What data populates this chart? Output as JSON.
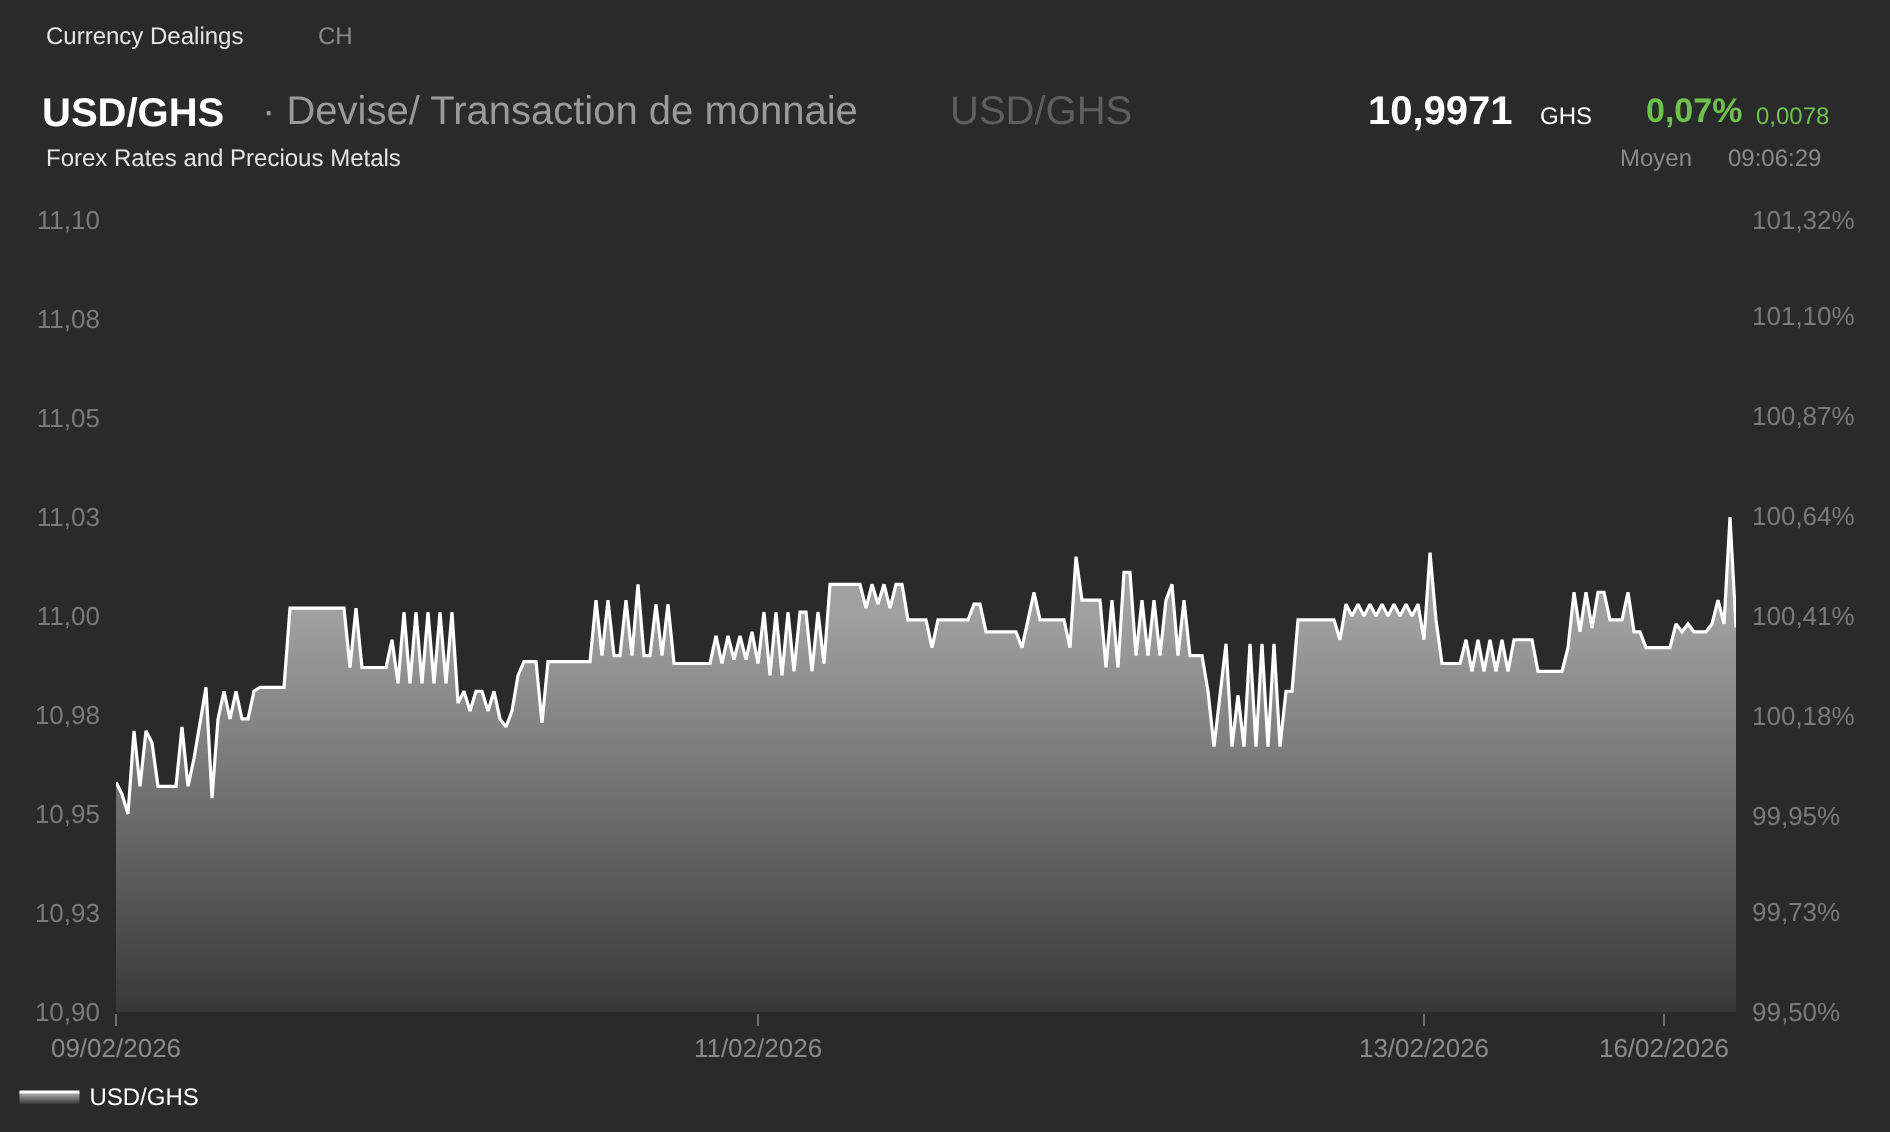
{
  "chart_data": {
    "type": "area",
    "title": "USD/GHS",
    "subtitle": "Forex Rates and Precious Metals",
    "annotations": [
      "Currency Dealings",
      "CH",
      "· Devise/ Transaction de monnaie",
      "USD/GHS",
      "10,9971",
      "GHS",
      "0,07%",
      "0,0078",
      "Moyen",
      "09:06:29"
    ],
    "categories": [
      "09/02/2026",
      null,
      null,
      null,
      null,
      null,
      null,
      null,
      null,
      null,
      null,
      null,
      null,
      null,
      null,
      null,
      null,
      null,
      null,
      null,
      null,
      null,
      null,
      null,
      null,
      null,
      null,
      null,
      null,
      null,
      null,
      null,
      null,
      null,
      null,
      null,
      null,
      null,
      null,
      null,
      null,
      null,
      null,
      null,
      null,
      null,
      null,
      null,
      null,
      null,
      null,
      null,
      null,
      null,
      null,
      null,
      null,
      null,
      null,
      null,
      null,
      null,
      null,
      null,
      null,
      null,
      null,
      null,
      null,
      null,
      null,
      null,
      null,
      null,
      null,
      null,
      null,
      null,
      null,
      null,
      null,
      null,
      null,
      null,
      null,
      null,
      null,
      null,
      null,
      null,
      null,
      null,
      null,
      null,
      null,
      null,
      null,
      null,
      null,
      null,
      null,
      null,
      null,
      null,
      null,
      null,
      null,
      "11/02/2026",
      null,
      null,
      null,
      null,
      null,
      null,
      null,
      null,
      null,
      null,
      null,
      null,
      null,
      null,
      null,
      null,
      null,
      null,
      null,
      null,
      null,
      null,
      null,
      null,
      null,
      null,
      null,
      null,
      null,
      null,
      null,
      null,
      null,
      null,
      null,
      null,
      null,
      null,
      null,
      null,
      null,
      null,
      null,
      null,
      null,
      null,
      null,
      null,
      null,
      null,
      null,
      null,
      null,
      null,
      null,
      null,
      null,
      null,
      null,
      null,
      null,
      null,
      null,
      null,
      null,
      null,
      null,
      null,
      null,
      null,
      null,
      null,
      null,
      null,
      null,
      null,
      null,
      null,
      null,
      null,
      null,
      null,
      null,
      null,
      null,
      null,
      null,
      null,
      null,
      null,
      null,
      null,
      null,
      null,
      null,
      null,
      null,
      null,
      null,
      null,
      null,
      null,
      null,
      null,
      null,
      null,
      null,
      null,
      null,
      null,
      "13/02/2026",
      null,
      null,
      null,
      null,
      null,
      null,
      null,
      null,
      null,
      null,
      null,
      null,
      null,
      null,
      null,
      null,
      null,
      null,
      null,
      null,
      null,
      null,
      null,
      null,
      null,
      null,
      null,
      null,
      null,
      null,
      null,
      null,
      null,
      null,
      null,
      null,
      null,
      null,
      null,
      "16/02/2026",
      null,
      null,
      null,
      null,
      null,
      null,
      null,
      null,
      null,
      null,
      null,
      null
    ],
    "series": [
      {
        "name": "USD/GHS",
        "color": "#ffffff",
        "values": [
          10.958,
          10.955,
          10.95,
          10.971,
          10.957,
          10.971,
          10.968,
          10.957,
          10.957,
          10.957,
          10.957,
          10.972,
          10.957,
          10.964,
          10.973,
          10.982,
          10.954,
          10.974,
          10.981,
          10.974,
          10.981,
          10.974,
          10.974,
          10.981,
          10.982,
          10.982,
          10.982,
          10.982,
          10.982,
          11.002,
          11.002,
          11.002,
          11.002,
          11.002,
          11.002,
          11.002,
          11.002,
          11.002,
          11.002,
          10.987,
          11.002,
          10.987,
          10.987,
          10.987,
          10.987,
          10.987,
          10.994,
          10.983,
          11.001,
          10.983,
          11.001,
          10.983,
          11.001,
          10.983,
          11.001,
          10.983,
          11.001,
          10.978,
          10.981,
          10.976,
          10.981,
          10.981,
          10.976,
          10.981,
          10.974,
          10.972,
          10.976,
          10.985,
          10.9885,
          10.9885,
          10.9885,
          10.973,
          10.9885,
          10.9885,
          10.9885,
          10.9885,
          10.9885,
          10.9885,
          10.9885,
          10.9885,
          11.004,
          10.99,
          11.004,
          10.99,
          10.99,
          11.004,
          10.99,
          11.008,
          10.99,
          10.99,
          11.003,
          10.99,
          11.003,
          10.988,
          10.988,
          10.988,
          10.988,
          10.988,
          10.988,
          10.988,
          10.995,
          10.988,
          10.995,
          10.989,
          10.995,
          10.989,
          10.996,
          10.988,
          11.001,
          10.985,
          11.001,
          10.985,
          11.001,
          10.986,
          11.001,
          11.001,
          10.986,
          11.001,
          10.988,
          11.008,
          11.008,
          11.008,
          11.008,
          11.008,
          11.008,
          11.002,
          11.008,
          11.003,
          11.008,
          11.002,
          11.008,
          11.008,
          10.999,
          10.999,
          10.999,
          10.999,
          10.992,
          10.999,
          10.999,
          10.999,
          10.999,
          10.999,
          10.999,
          11.003,
          11.003,
          10.996,
          10.996,
          10.996,
          10.996,
          10.996,
          10.996,
          10.992,
          10.999,
          11.006,
          10.999,
          10.999,
          10.999,
          10.999,
          10.999,
          10.992,
          11.015,
          11.004,
          11.004,
          11.004,
          11.004,
          10.987,
          11.004,
          10.987,
          11.011,
          11.011,
          10.99,
          11.004,
          10.99,
          11.004,
          10.99,
          11.004,
          11.008,
          10.99,
          11.004,
          10.99,
          10.99,
          10.99,
          10.981,
          10.967,
          10.98,
          10.993,
          10.967,
          10.98,
          10.967,
          10.993,
          10.967,
          10.993,
          10.967,
          10.993,
          10.967,
          10.981,
          10.981,
          10.999,
          10.999,
          10.999,
          10.999,
          10.999,
          10.999,
          10.999,
          10.994,
          11.003,
          11.0,
          11.003,
          11.0,
          11.003,
          11.0,
          11.003,
          11.0,
          11.003,
          11.0,
          11.003,
          11.0,
          11.003,
          10.994,
          11.016,
          10.999,
          10.988,
          10.988,
          10.988,
          10.988,
          10.994,
          10.986,
          10.994,
          10.986,
          10.994,
          10.986,
          10.994,
          10.986,
          10.994,
          10.994,
          10.994,
          10.994,
          10.986,
          10.986,
          10.986,
          10.986,
          10.986,
          10.992,
          11.006,
          10.996,
          11.006,
          10.997,
          11.006,
          11.006,
          10.999,
          10.999,
          10.999,
          11.006,
          10.996,
          10.996,
          10.992,
          10.992,
          10.992,
          10.992,
          10.992,
          10.998,
          10.996,
          10.998,
          10.996,
          10.996,
          10.996,
          10.998,
          11.004,
          10.998,
          11.025,
          10.9971
        ]
      }
    ],
    "ylim": [
      10.9,
      11.1
    ],
    "yticks": [
      {
        "value": 10.9,
        "label": "10,90"
      },
      {
        "value": 10.925,
        "label": "10,93"
      },
      {
        "value": 10.95,
        "label": "10,95"
      },
      {
        "value": 10.975,
        "label": "10,98"
      },
      {
        "value": 11.0,
        "label": "11,00"
      },
      {
        "value": 11.025,
        "label": "11,03"
      },
      {
        "value": 11.05,
        "label": "11,05"
      },
      {
        "value": 11.075,
        "label": "11,08"
      },
      {
        "value": 11.1,
        "label": "11,10"
      }
    ],
    "y2lim": [
      99.5,
      101.32
    ],
    "y2ticks": [
      {
        "value": 99.5,
        "label": "99,50%"
      },
      {
        "value": 99.73,
        "label": "99,73%"
      },
      {
        "value": 99.95,
        "label": "99,95%"
      },
      {
        "value": 100.18,
        "label": "100,18%"
      },
      {
        "value": 100.41,
        "label": "100,41%"
      },
      {
        "value": 100.64,
        "label": "100,64%"
      },
      {
        "value": 100.87,
        "label": "100,87%"
      },
      {
        "value": 101.1,
        "label": "101,10%"
      },
      {
        "value": 101.32,
        "label": "101,32%"
      }
    ],
    "legend": "bottom left"
  }
}
